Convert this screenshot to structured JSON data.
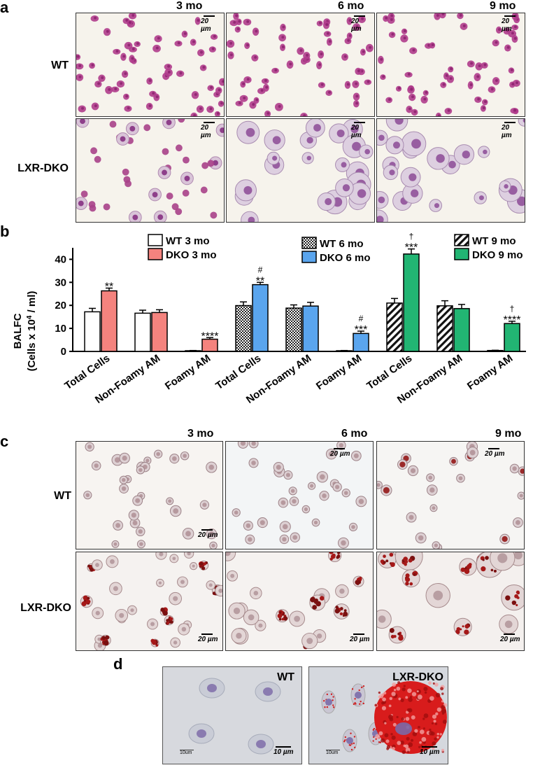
{
  "panel_a": {
    "label": "a",
    "columns": [
      "3 mo",
      "6 mo",
      "9 mo"
    ],
    "rows": [
      "WT",
      "LXR-DKO"
    ],
    "scale": "20 µm"
  },
  "panel_b": {
    "label": "b"
  },
  "panel_c": {
    "label": "c",
    "columns": [
      "3 mo",
      "6 mo",
      "9 mo"
    ],
    "rows": [
      "WT",
      "LXR-DKO"
    ],
    "scale": "20 µm"
  },
  "panel_d": {
    "label": "d",
    "panels": [
      "WT",
      "LXR-DKO"
    ],
    "inner_scale": "10um",
    "scale": "10 µm"
  },
  "chart_data": {
    "type": "bar",
    "ylabel_line1": "BALFC",
    "ylabel_line2": "(Cells x 10",
    "ylabel_sup": "4",
    "ylabel_end": " / ml)",
    "ylim": [
      0,
      45
    ],
    "yticks": [
      0,
      10,
      20,
      30,
      40
    ],
    "categories": [
      "Total Cells",
      "Non-Foamy AM",
      "Foamy AM",
      "Total Cells",
      "Non-Foamy AM",
      "Foamy AM",
      "Total Cells",
      "Non-Foamy AM",
      "Foamy AM"
    ],
    "groups": [
      {
        "wt": 17.2,
        "wt_err": 1.5,
        "dko": 26.3,
        "dko_err": 1.2,
        "sig": [
          "**"
        ]
      },
      {
        "wt": 16.6,
        "wt_err": 1.3,
        "dko": 16.9,
        "dko_err": 1.2,
        "sig": []
      },
      {
        "wt": 0.3,
        "wt_err": 0.1,
        "dko": 5.3,
        "dko_err": 0.7,
        "sig": [
          "****"
        ]
      },
      {
        "wt": 19.9,
        "wt_err": 1.6,
        "dko": 29.0,
        "dko_err": 1.0,
        "sig": [
          "#",
          "**"
        ]
      },
      {
        "wt": 18.8,
        "wt_err": 1.4,
        "dko": 19.7,
        "dko_err": 1.6,
        "sig": []
      },
      {
        "wt": 0.3,
        "wt_err": 0.1,
        "dko": 7.8,
        "dko_err": 1.0,
        "sig": [
          "#",
          "***"
        ]
      },
      {
        "wt": 21.0,
        "wt_err": 2.0,
        "dko": 42.3,
        "dko_err": 2.2,
        "sig": [
          "†",
          "***"
        ]
      },
      {
        "wt": 19.8,
        "wt_err": 2.2,
        "dko": 18.6,
        "dko_err": 1.8,
        "sig": []
      },
      {
        "wt": 0.4,
        "wt_err": 0.1,
        "dko": 12.1,
        "dko_err": 1.0,
        "sig": [
          "†",
          "****"
        ]
      }
    ],
    "legends": [
      {
        "items": [
          "WT 3 mo",
          "DKO 3 mo"
        ]
      },
      {
        "items": [
          "WT 6 mo",
          "DKO 6 mo"
        ]
      },
      {
        "items": [
          "WT 9 mo",
          "DKO 9 mo"
        ]
      }
    ],
    "colors": {
      "dko3": "#f4837e",
      "dko6": "#5aa5ee",
      "dko9": "#22b573",
      "wt": "#ffffff"
    }
  }
}
